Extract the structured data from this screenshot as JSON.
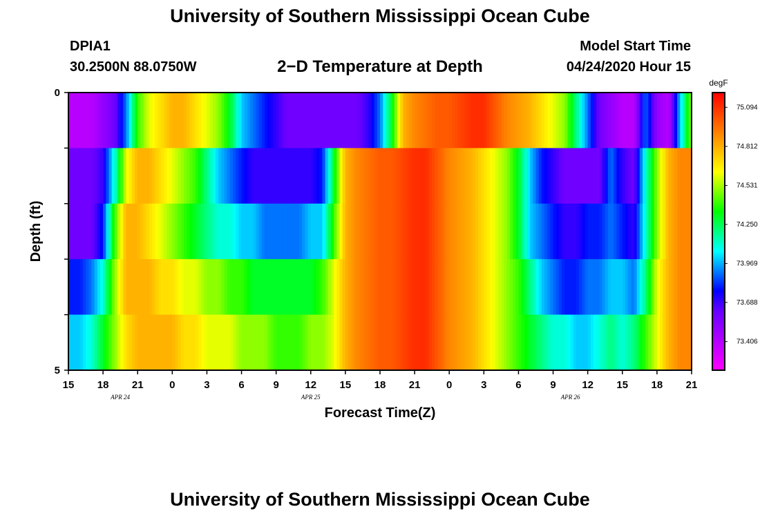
{
  "header": {
    "title": "University of Southern Mississippi Ocean Cube",
    "station": "DPIA1",
    "coords": "30.2500N 88.0750W",
    "subtitle": "2−D Temperature at Depth",
    "model_start_label": "Model Start Time",
    "model_start_value": "04/24/2020 Hour 15"
  },
  "footer": {
    "title": "University of Southern Mississippi Ocean Cube"
  },
  "chart_data": {
    "type": "heatmap",
    "xlabel": "Forecast Time(Z)",
    "ylabel": "Depth (ft)",
    "x_tick_labels": [
      "15",
      "18",
      "21",
      "0",
      "3",
      "6",
      "9",
      "12",
      "15",
      "18",
      "21",
      "0",
      "3",
      "6",
      "9",
      "12",
      "15",
      "18",
      "21"
    ],
    "date_labels": [
      {
        "text": "APR  24",
        "at_tick": 1.5
      },
      {
        "text": "APR  25",
        "at_tick": 7
      },
      {
        "text": "APR  26",
        "at_tick": 14.5
      }
    ],
    "x_hours_range": [
      0,
      54
    ],
    "y_tick_labels": [
      "0",
      "5"
    ],
    "ylim": [
      0,
      5
    ],
    "depth_layers": 5,
    "colorbar": {
      "unit": "degF",
      "tick_labels": [
        "75.094",
        "74.812",
        "74.531",
        "74.250",
        "73.969",
        "73.688",
        "73.406"
      ],
      "range_degF": [
        73.2,
        75.2
      ],
      "colors": [
        "#ff00ff",
        "#cc00ff",
        "#9900ff",
        "#6600ff",
        "#0000ff",
        "#0080ff",
        "#00ffff",
        "#00ff80",
        "#00ff00",
        "#80ff00",
        "#ffff00",
        "#ffc000",
        "#ff8000",
        "#ff4000",
        "#ff0000"
      ]
    },
    "series": [
      {
        "hour": [
          0,
          1,
          2,
          3,
          4,
          5,
          6,
          7,
          8,
          9,
          10,
          11,
          12,
          13,
          14,
          15,
          16,
          17,
          18,
          19,
          20,
          21,
          22,
          23,
          24,
          25,
          26,
          27,
          28,
          29,
          30,
          31,
          32,
          33,
          34,
          35,
          36,
          37,
          38,
          39,
          40,
          41,
          42,
          43,
          44,
          45,
          46,
          47,
          48,
          49,
          50,
          51,
          52,
          53,
          54
        ],
        "layer0": [
          73.4,
          73.4,
          73.4,
          73.5,
          73.6,
          73.9,
          74.4,
          74.6,
          74.7,
          74.8,
          74.8,
          74.7,
          74.6,
          74.5,
          74.3,
          74.0,
          73.9,
          73.8,
          73.7,
          73.6,
          73.6,
          73.6,
          73.6,
          73.6,
          73.6,
          73.6,
          73.7,
          73.9,
          74.3,
          74.8,
          74.9,
          74.95,
          75.0,
          75.0,
          75.05,
          75.1,
          75.1,
          75.0,
          74.9,
          74.85,
          74.8,
          74.7,
          74.6,
          74.5,
          74.2,
          73.9,
          73.6,
          73.5,
          73.4,
          73.4,
          73.9,
          73.5,
          73.4,
          74.0,
          74.5
        ],
        "layer1": [
          73.6,
          73.6,
          73.6,
          73.7,
          74.1,
          74.6,
          74.8,
          74.8,
          74.7,
          74.6,
          74.5,
          74.4,
          74.2,
          74.0,
          73.9,
          73.8,
          73.7,
          73.7,
          73.7,
          73.7,
          73.7,
          73.7,
          73.8,
          74.3,
          74.8,
          74.9,
          74.95,
          75.0,
          75.0,
          75.05,
          75.1,
          75.1,
          75.0,
          74.9,
          74.85,
          74.8,
          74.7,
          74.6,
          74.5,
          74.3,
          74.0,
          73.8,
          73.7,
          73.6,
          73.6,
          73.6,
          73.6,
          73.9,
          73.7,
          73.6,
          74.1,
          74.5,
          74.8,
          74.9,
          74.9
        ],
        "layer2": [
          73.6,
          73.6,
          73.6,
          73.8,
          74.4,
          74.8,
          74.8,
          74.7,
          74.6,
          74.5,
          74.4,
          74.3,
          74.2,
          74.1,
          74.1,
          74.0,
          74.0,
          73.9,
          73.9,
          73.9,
          73.9,
          74.0,
          74.0,
          74.4,
          74.8,
          74.9,
          74.95,
          75.0,
          75.0,
          75.05,
          75.1,
          75.1,
          75.0,
          74.9,
          74.85,
          74.8,
          74.7,
          74.6,
          74.5,
          74.3,
          74.0,
          73.9,
          73.8,
          73.7,
          73.7,
          73.8,
          73.8,
          73.9,
          73.8,
          73.7,
          74.1,
          74.5,
          74.8,
          74.9,
          74.9
        ],
        "layer3": [
          73.8,
          73.8,
          73.9,
          74.1,
          74.5,
          74.8,
          74.8,
          74.8,
          74.7,
          74.7,
          74.6,
          74.6,
          74.5,
          74.5,
          74.4,
          74.4,
          74.3,
          74.3,
          74.3,
          74.3,
          74.3,
          74.3,
          74.4,
          74.6,
          74.8,
          74.9,
          74.95,
          75.0,
          75.0,
          75.05,
          75.1,
          75.1,
          75.0,
          74.9,
          74.85,
          74.8,
          74.7,
          74.6,
          74.5,
          74.4,
          74.2,
          74.0,
          73.9,
          73.8,
          73.8,
          73.9,
          73.9,
          74.0,
          74.0,
          73.9,
          74.2,
          74.6,
          74.8,
          74.9,
          74.9
        ],
        "layer4": [
          74.0,
          74.0,
          74.1,
          74.3,
          74.5,
          74.7,
          74.8,
          74.8,
          74.8,
          74.8,
          74.7,
          74.7,
          74.6,
          74.6,
          74.6,
          74.5,
          74.5,
          74.5,
          74.4,
          74.4,
          74.4,
          74.5,
          74.5,
          74.6,
          74.8,
          74.9,
          74.95,
          75.0,
          75.0,
          75.05,
          75.1,
          75.1,
          75.0,
          74.9,
          74.85,
          74.8,
          74.7,
          74.6,
          74.5,
          74.4,
          74.3,
          74.2,
          74.1,
          74.1,
          74.0,
          74.0,
          74.1,
          74.2,
          74.1,
          74.2,
          74.4,
          74.6,
          74.8,
          74.9,
          74.9
        ]
      }
    ]
  }
}
